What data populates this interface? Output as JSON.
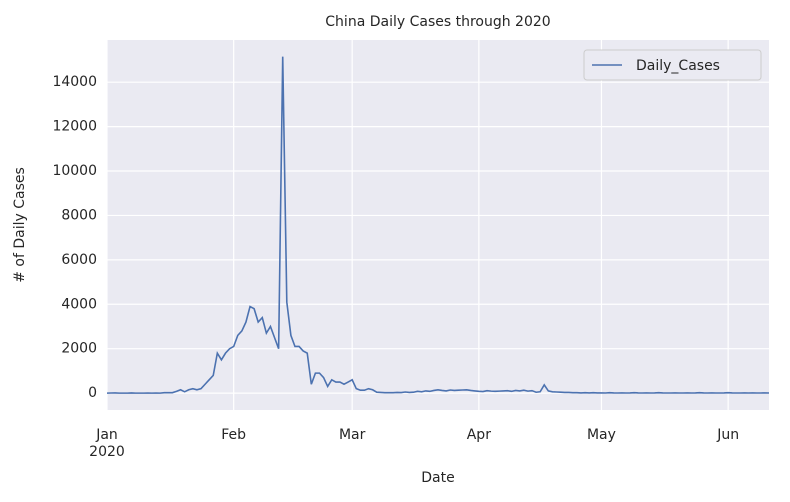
{
  "chart_data": {
    "type": "line",
    "title": "China Daily Cases through 2020",
    "xlabel": "Date",
    "ylabel": "# of Daily Cases",
    "x": [
      0,
      1,
      2,
      3,
      4,
      5,
      6,
      7,
      8,
      9,
      10,
      11,
      12,
      13,
      14,
      15,
      16,
      17,
      18,
      19,
      20,
      21,
      22,
      23,
      24,
      25,
      26,
      27,
      28,
      29,
      30,
      31,
      32,
      33,
      34,
      35,
      36,
      37,
      38,
      39,
      40,
      41,
      42,
      43,
      44,
      45,
      46,
      47,
      48,
      49,
      50,
      51,
      52,
      53,
      54,
      55,
      56,
      57,
      58,
      59,
      60,
      61,
      62,
      63,
      64,
      65,
      66,
      67,
      68,
      69,
      70,
      71,
      72,
      73,
      74,
      75,
      76,
      77,
      78,
      79,
      80,
      81,
      82,
      83,
      84,
      85,
      86,
      87,
      88,
      89,
      90,
      91,
      92,
      93,
      94,
      95,
      96,
      97,
      98,
      99,
      100,
      101,
      102,
      103,
      104,
      105,
      106,
      107,
      108,
      109,
      110,
      111,
      112,
      113,
      114,
      115,
      116,
      117,
      118,
      119,
      120,
      121,
      122,
      123,
      124,
      125,
      126,
      127,
      128,
      129,
      130,
      131,
      132,
      133,
      134,
      135,
      136,
      137,
      138,
      139,
      140,
      141,
      142,
      143,
      144,
      145,
      146,
      147,
      148,
      149,
      150,
      151,
      152,
      153,
      154,
      155,
      156,
      157,
      158,
      159,
      160,
      161,
      162
    ],
    "series": [
      {
        "name": "Daily_Cases",
        "color": "#4c72b0",
        "values": [
          0,
          5,
          10,
          0,
          0,
          0,
          10,
          0,
          0,
          0,
          5,
          0,
          5,
          0,
          20,
          20,
          20,
          80,
          150,
          60,
          150,
          200,
          150,
          200,
          400,
          600,
          800,
          1800,
          1500,
          1800,
          2000,
          2100,
          2600,
          2800,
          3200,
          3900,
          3800,
          3200,
          3400,
          2700,
          3000,
          2500,
          2000,
          15150,
          4100,
          2600,
          2100,
          2100,
          1900,
          1800,
          400,
          900,
          900,
          700,
          300,
          600,
          500,
          500,
          400,
          500,
          600,
          200,
          130,
          130,
          200,
          150,
          40,
          30,
          20,
          20,
          20,
          30,
          25,
          50,
          30,
          40,
          80,
          60,
          100,
          80,
          120,
          150,
          120,
          100,
          140,
          120,
          130,
          140,
          150,
          120,
          100,
          80,
          70,
          110,
          90,
          80,
          90,
          100,
          110,
          80,
          120,
          100,
          130,
          90,
          110,
          40,
          60,
          370,
          100,
          60,
          50,
          40,
          30,
          30,
          20,
          20,
          10,
          20,
          10,
          20,
          10,
          10,
          5,
          20,
          10,
          5,
          10,
          5,
          10,
          20,
          10,
          5,
          10,
          5,
          10,
          20,
          10,
          5,
          5,
          10,
          5,
          5,
          10,
          5,
          10,
          20,
          10,
          5,
          10,
          5,
          5,
          10,
          20,
          10,
          5,
          5,
          10,
          5,
          10,
          5,
          5,
          10,
          5
        ]
      }
    ],
    "xlim": [
      0,
      162
    ],
    "xticks": [
      {
        "value": 0,
        "label": "Jan\n2020"
      },
      {
        "value": 31,
        "label": "Feb"
      },
      {
        "value": 60,
        "label": "Mar"
      },
      {
        "value": 91,
        "label": "Apr"
      },
      {
        "value": 121,
        "label": "May"
      },
      {
        "value": 152,
        "label": "Jun"
      }
    ],
    "ylim": [
      -760,
      15900
    ],
    "yticks": [
      0,
      2000,
      4000,
      6000,
      8000,
      10000,
      12000,
      14000
    ],
    "grid": true,
    "legend": "upper right"
  }
}
